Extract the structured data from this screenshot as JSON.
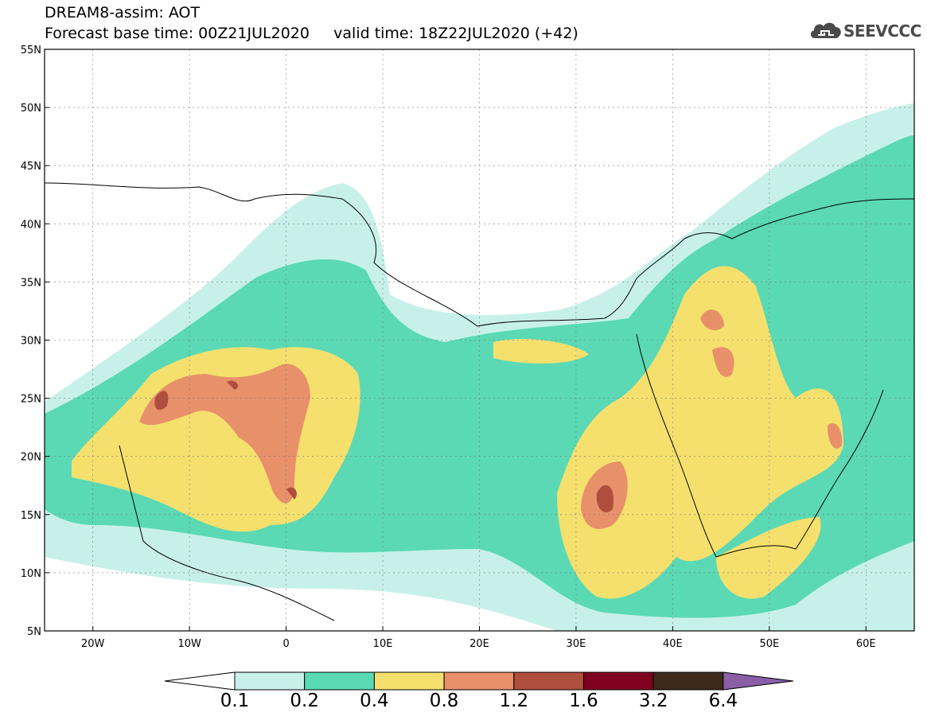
{
  "header": {
    "title_line1": "DREAM8-assim: AOT",
    "title_line2": "Forecast base time: 00Z21JUL2020     valid time: 18Z22JUL2020 (+42)"
  },
  "logo": {
    "text": "SEEVCCC",
    "icon": "cloud-icon"
  },
  "axes": {
    "lat_labels": [
      "55N",
      "50N",
      "45N",
      "40N",
      "35N",
      "30N",
      "25N",
      "20N",
      "15N",
      "10N",
      "5N"
    ],
    "lon_labels": [
      "20W",
      "10W",
      "0",
      "10E",
      "20E",
      "30E",
      "40E",
      "50E",
      "60E"
    ],
    "lat_values": [
      55,
      50,
      45,
      40,
      35,
      30,
      25,
      20,
      15,
      10,
      5
    ],
    "lon_values": [
      -20,
      -10,
      0,
      10,
      20,
      30,
      40,
      50,
      60
    ],
    "lon_range": [
      -25,
      65
    ],
    "lat_range": [
      5,
      55
    ]
  },
  "colorbar": {
    "labels": [
      "0.1",
      "0.2",
      "0.4",
      "0.8",
      "1.2",
      "1.6",
      "3.2",
      "6.4"
    ],
    "colors": [
      "#c8f0ea",
      "#5ad9b4",
      "#f5e06e",
      "#e8906a",
      "#b04e3e",
      "#800020",
      "#3d2a1a",
      "#8a5fa6"
    ],
    "under_color": "#ffffff"
  }
}
